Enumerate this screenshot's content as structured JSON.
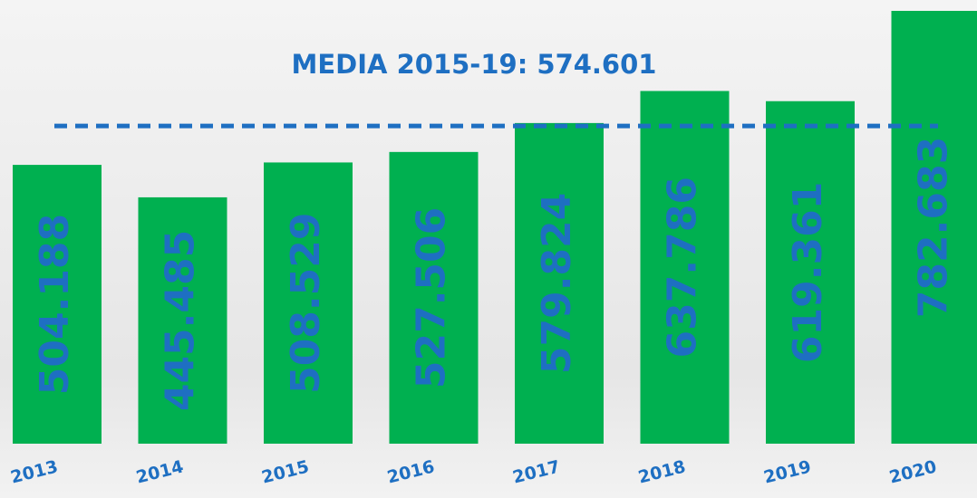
{
  "chart_data": {
    "type": "bar",
    "categories": [
      "2013",
      "2014",
      "2015",
      "2016",
      "2017",
      "2018",
      "2019",
      "2020"
    ],
    "values": [
      504188,
      445485,
      508529,
      527506,
      579824,
      637786,
      619361,
      782683
    ],
    "value_labels": [
      "504.188",
      "445.485",
      "508.529",
      "527.506",
      "579.824",
      "637.786",
      "619.361",
      "782.683"
    ],
    "color": "#00b050",
    "label_color": "#1e6fc2",
    "mean": {
      "value": 574601,
      "label": "MEDIA 2015-19: 574.601"
    }
  }
}
